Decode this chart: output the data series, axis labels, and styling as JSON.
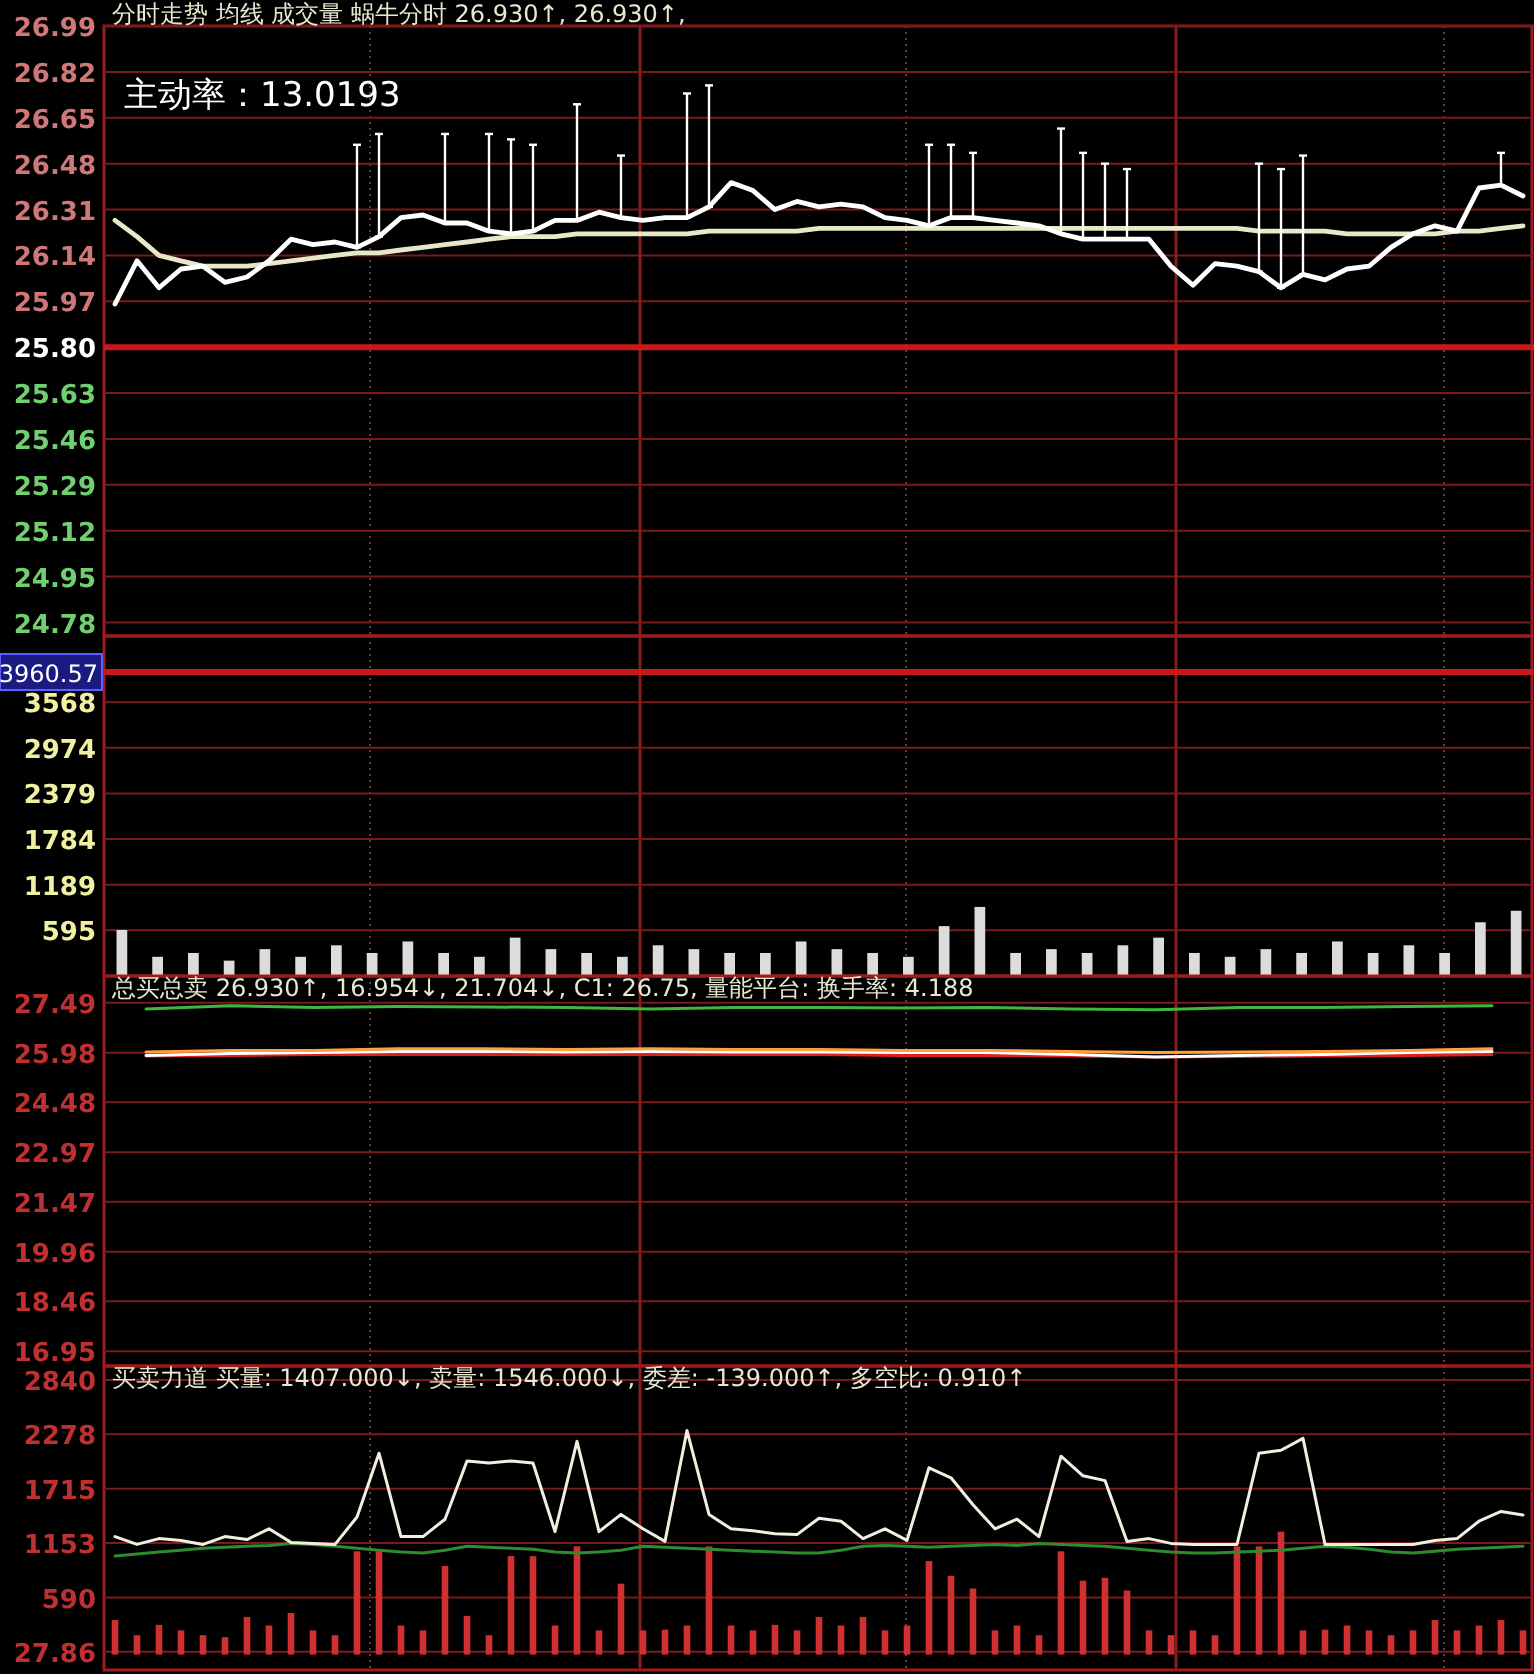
{
  "chart_data": [
    {
      "type": "line",
      "title": "分时走势 均线 成交量 蜗牛分时 26.930↑, 26.930↑,",
      "annotations": [
        "主动率：13.0193"
      ],
      "categories": [
        null,
        null,
        null,
        null,
        null,
        null,
        null,
        null,
        null,
        null,
        null,
        null,
        null,
        null,
        null,
        null,
        null,
        null,
        null,
        null,
        null,
        null,
        null,
        null,
        null,
        null,
        null,
        null,
        null,
        null,
        null,
        null,
        null,
        null,
        null,
        null,
        null,
        null,
        null,
        null,
        null,
        null,
        null,
        null,
        null,
        null,
        null,
        null,
        null,
        null,
        null,
        null,
        null,
        null,
        null,
        null,
        null,
        null,
        null,
        null,
        null,
        null,
        null,
        null,
        null
      ],
      "ylim": [
        24.73,
        26.99
      ],
      "yticks": [
        26.99,
        26.82,
        26.65,
        26.48,
        26.31,
        26.14,
        25.97,
        {
          "value": 25.8,
          "label": "25.80"
        },
        25.63,
        25.46,
        25.29,
        25.12,
        24.95,
        24.78
      ],
      "grid": true,
      "ref_lines": [
        {
          "axis": "y",
          "value": 25.8,
          "label": null,
          "color": "#c81818"
        }
      ],
      "series": [
        {
          "color": "#e8e8c8",
          "values": [
            26.27,
            26.21,
            26.14,
            26.12,
            26.1,
            26.1,
            26.1,
            26.11,
            26.12,
            26.13,
            26.14,
            26.15,
            26.15,
            26.16,
            26.17,
            26.18,
            26.19,
            26.2,
            26.21,
            26.21,
            26.21,
            26.22,
            26.22,
            26.22,
            26.22,
            26.22,
            26.22,
            26.23,
            26.23,
            26.23,
            26.23,
            26.23,
            26.24,
            26.24,
            26.24,
            26.24,
            26.24,
            26.24,
            26.24,
            26.24,
            26.24,
            26.24,
            26.24,
            26.24,
            26.24,
            26.24,
            26.24,
            26.24,
            26.24,
            26.24,
            26.24,
            26.24,
            26.23,
            26.23,
            26.23,
            26.23,
            26.22,
            26.22,
            26.22,
            26.22,
            26.22,
            26.23,
            26.23,
            26.24,
            26.25
          ]
        },
        {
          "color": "#ffffff",
          "errors": [
            null,
            null,
            null,
            null,
            null,
            null,
            null,
            null,
            null,
            null,
            null,
            [
              26.17,
              26.55
            ],
            [
              26.21,
              26.59
            ],
            null,
            null,
            [
              26.26,
              26.59
            ],
            null,
            [
              26.23,
              26.59
            ],
            [
              26.22,
              26.57
            ],
            [
              26.23,
              26.55
            ],
            null,
            [
              26.27,
              26.7
            ],
            null,
            [
              26.28,
              26.51
            ],
            null,
            null,
            [
              26.28,
              26.74
            ],
            [
              26.32,
              26.77
            ],
            null,
            null,
            null,
            null,
            null,
            null,
            null,
            null,
            null,
            [
              26.25,
              26.55
            ],
            [
              26.28,
              26.55
            ],
            [
              26.28,
              26.52
            ],
            null,
            null,
            null,
            [
              26.22,
              26.61
            ],
            [
              26.2,
              26.52
            ],
            [
              26.2,
              26.48
            ],
            [
              26.2,
              26.46
            ],
            null,
            null,
            null,
            null,
            null,
            [
              26.08,
              26.48
            ],
            [
              26.02,
              26.46
            ],
            [
              26.07,
              26.51
            ],
            null,
            null,
            null,
            null,
            null,
            null,
            null,
            null,
            [
              26.4,
              26.52
            ],
            null
          ],
          "values": [
            25.96,
            26.12,
            26.02,
            26.09,
            26.1,
            26.04,
            26.06,
            26.12,
            26.2,
            26.18,
            26.19,
            26.17,
            26.21,
            26.28,
            26.29,
            26.26,
            26.26,
            26.23,
            26.22,
            26.23,
            26.27,
            26.27,
            26.3,
            26.28,
            26.27,
            26.28,
            26.28,
            26.32,
            26.41,
            26.38,
            26.31,
            26.34,
            26.32,
            26.33,
            26.32,
            26.28,
            26.27,
            26.25,
            26.28,
            26.28,
            26.27,
            26.26,
            26.25,
            26.22,
            26.2,
            26.2,
            26.2,
            26.2,
            26.1,
            26.03,
            26.11,
            26.1,
            26.08,
            26.02,
            26.07,
            26.05,
            26.09,
            26.1,
            26.17,
            26.22,
            26.25,
            26.23,
            26.39,
            26.4,
            26.36
          ]
        }
      ]
    },
    {
      "type": "bar",
      "categories": [
        null,
        null,
        null,
        null,
        null,
        null,
        null,
        null,
        null,
        null,
        null,
        null,
        null,
        null,
        null,
        null,
        null,
        null,
        null,
        null,
        null,
        null,
        null,
        null,
        null,
        null,
        null,
        null,
        null,
        null,
        null,
        null,
        null,
        null,
        null,
        null,
        null,
        null,
        null,
        null
      ],
      "ylim": [
        0,
        4430
      ],
      "yticks": [
        3568,
        2974,
        2379,
        1784,
        1189,
        595
      ],
      "grid": true,
      "ref_lines": [
        {
          "axis": "y",
          "value": 3960.57,
          "label": "3960.57",
          "color": "#c81818"
        }
      ],
      "series": [
        {
          "color": "#dcdcdc",
          "values": [
            600,
            250,
            300,
            200,
            350,
            250,
            400,
            300,
            450,
            300,
            250,
            500,
            350,
            300,
            250,
            400,
            350,
            300,
            300,
            450,
            350,
            300,
            250,
            650,
            900,
            300,
            350,
            300,
            400,
            500,
            300,
            250,
            350,
            300,
            450,
            300,
            400,
            300,
            700,
            850
          ]
        }
      ]
    },
    {
      "type": "line",
      "title": "总买总卖 26.930↑, 16.954↓, 21.704↓, C1: 26.75, 量能平台: 换手率: 4.188",
      "categories": [
        null,
        null,
        null,
        null,
        null,
        null,
        null,
        null,
        null,
        null,
        null,
        null,
        null,
        null,
        null,
        null,
        null
      ],
      "ylim": [
        16.5,
        28.3
      ],
      "yticks": [
        27.49,
        25.98,
        24.48,
        22.97,
        21.47,
        19.96,
        18.46,
        16.95
      ],
      "grid": true,
      "series": [
        {
          "color": "#3cb83c",
          "values": [
            27.3,
            27.4,
            27.35,
            27.38,
            27.36,
            27.35,
            27.3,
            27.35,
            27.35,
            27.33,
            27.35,
            27.3,
            27.28,
            27.35,
            27.35,
            27.38,
            27.4
          ]
        },
        {
          "color": "#e02020",
          "values": [
            25.88,
            25.9,
            25.92,
            25.93,
            25.93,
            25.92,
            25.93,
            25.92,
            25.92,
            25.9,
            25.9,
            25.88,
            25.85,
            25.86,
            25.88,
            25.9,
            25.92
          ]
        },
        {
          "color": "#ffffff",
          "values": [
            25.9,
            25.95,
            25.98,
            26.02,
            26.02,
            26.0,
            26.02,
            26.0,
            26.0,
            25.98,
            25.98,
            25.92,
            25.85,
            25.9,
            25.92,
            25.98,
            26.02
          ]
        },
        {
          "color": "#ffa040",
          "values": [
            26.0,
            26.05,
            26.05,
            26.1,
            26.1,
            26.08,
            26.1,
            26.08,
            26.08,
            26.05,
            26.05,
            26.02,
            25.98,
            26.0,
            26.02,
            26.05,
            26.1
          ]
        }
      ]
    },
    {
      "type": "line",
      "title": "买卖力道 买量: 1407.000↓, 卖量: 1546.000↓, 委差: -139.000↑, 多空比: 0.910↑",
      "categories": [
        null,
        null,
        null,
        null,
        null,
        null,
        null,
        null,
        null,
        null,
        null,
        null,
        null,
        null,
        null,
        null,
        null,
        null,
        null,
        null,
        null,
        null,
        null,
        null,
        null,
        null,
        null,
        null,
        null,
        null,
        null,
        null,
        null,
        null,
        null,
        null,
        null,
        null,
        null,
        null,
        null,
        null,
        null,
        null,
        null,
        null,
        null,
        null,
        null,
        null,
        null,
        null,
        null,
        null,
        null,
        null,
        null,
        null,
        null,
        null,
        null,
        null,
        null,
        null,
        null
      ],
      "ylim": [
        -160,
        2985
      ],
      "yticks": [
        2840,
        2278,
        1715,
        1153,
        590,
        27.86
      ],
      "grid": true,
      "series": [
        {
          "type": "bar",
          "color": "#d03030",
          "values": [
            358,
            200,
            307,
            250,
            200,
            180,
            389,
            300,
            429,
            250,
            200,
            1068,
            1068,
            300,
            250,
            916,
            400,
            200,
            1018,
            1018,
            300,
            1119,
            250,
            733,
            250,
            257,
            300,
            1119,
            300,
            250,
            307,
            250,
            389,
            300,
            389,
            250,
            300,
            967,
            815,
            683,
            250,
            300,
            200,
            1068,
            764,
            794,
            662,
            250,
            200,
            250,
            200,
            1119,
            1119,
            1271,
            250,
            257,
            300,
            250,
            200,
            250,
            358,
            250,
            300,
            358,
            250
          ]
        },
        {
          "color": "#2e8b2e",
          "values": [
            1020,
            1040,
            1060,
            1080,
            1100,
            1110,
            1120,
            1130,
            1150,
            1140,
            1120,
            1100,
            1080,
            1060,
            1050,
            1080,
            1120,
            1110,
            1100,
            1090,
            1060,
            1050,
            1060,
            1080,
            1120,
            1110,
            1100,
            1090,
            1080,
            1070,
            1060,
            1050,
            1050,
            1080,
            1120,
            1130,
            1120,
            1110,
            1120,
            1130,
            1140,
            1130,
            1150,
            1140,
            1130,
            1120,
            1100,
            1080,
            1060,
            1050,
            1050,
            1060,
            1070,
            1080,
            1100,
            1120,
            1110,
            1090,
            1060,
            1050,
            1070,
            1090,
            1100,
            1110,
            1120
          ]
        },
        {
          "color": "#f0f0e0",
          "values": [
            1220,
            1139,
            1200,
            1180,
            1139,
            1220,
            1190,
            1300,
            1160,
            1150,
            1140,
            1423,
            2083,
            1220,
            1220,
            1400,
            2002,
            1981,
            2002,
            1981,
            1271,
            2205,
            1271,
            1450,
            1300,
            1170,
            2316,
            1450,
            1300,
            1280,
            1250,
            1240,
            1410,
            1380,
            1200,
            1300,
            1180,
            1931,
            1829,
            1550,
            1300,
            1400,
            1220,
            2052,
            1850,
            1800,
            1170,
            1200,
            1150,
            1139,
            1139,
            1139,
            2083,
            2113,
            2235,
            1139,
            1139,
            1139,
            1139,
            1139,
            1180,
            1200,
            1380,
            1480,
            1444
          ]
        }
      ]
    }
  ]
}
